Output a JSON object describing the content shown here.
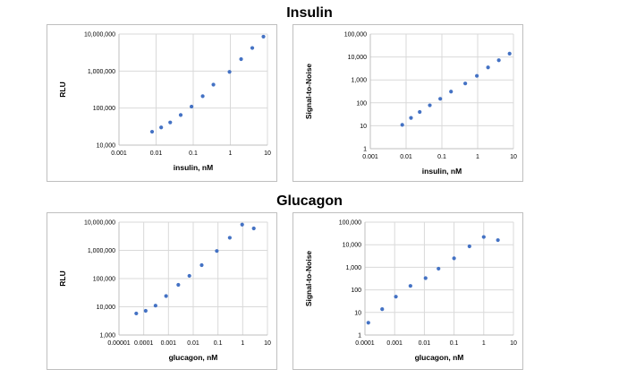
{
  "sections": [
    {
      "title": "Insulin"
    },
    {
      "title": "Glucagon"
    }
  ],
  "chart_data": [
    {
      "id": "insulin-rlu",
      "type": "scatter",
      "xlabel": "insulin, nM",
      "ylabel": "RLU",
      "xscale": "log",
      "yscale": "log",
      "xlim": [
        0.001,
        10
      ],
      "ylim": [
        10000,
        10000000
      ],
      "xticks": [
        "0.001",
        "0.01",
        "0.1",
        "1",
        "10"
      ],
      "yticks": [
        "10,000",
        "100,000",
        "1,000,000",
        "10,000,000"
      ],
      "grid": true,
      "color": "#4472c4",
      "points": [
        [
          0.0078,
          23000
        ],
        [
          0.0137,
          30000
        ],
        [
          0.024,
          41000
        ],
        [
          0.046,
          65000
        ],
        [
          0.09,
          110000
        ],
        [
          0.18,
          210000
        ],
        [
          0.35,
          430000
        ],
        [
          0.95,
          950000
        ],
        [
          1.95,
          2100000
        ],
        [
          3.9,
          4200000
        ],
        [
          7.8,
          8500000
        ]
      ]
    },
    {
      "id": "insulin-sn",
      "type": "scatter",
      "xlabel": "insulin, nM",
      "ylabel": "Signal-to-Noise",
      "xscale": "log",
      "yscale": "log",
      "xlim": [
        0.001,
        10
      ],
      "ylim": [
        1,
        100000
      ],
      "xticks": [
        "0.001",
        "0.01",
        "0.1",
        "1",
        "10"
      ],
      "yticks": [
        "1",
        "10",
        "100",
        "1,000",
        "10,000",
        "100,000"
      ],
      "grid": true,
      "color": "#4472c4",
      "points": [
        [
          0.0078,
          11
        ],
        [
          0.0137,
          22
        ],
        [
          0.024,
          40
        ],
        [
          0.046,
          78
        ],
        [
          0.09,
          150
        ],
        [
          0.18,
          310
        ],
        [
          0.45,
          700
        ],
        [
          0.95,
          1500
        ],
        [
          1.95,
          3500
        ],
        [
          3.9,
          7200
        ],
        [
          7.8,
          14000
        ]
      ]
    },
    {
      "id": "glucagon-rlu",
      "type": "scatter",
      "xlabel": "glucagon, nM",
      "ylabel": "RLU",
      "xscale": "log",
      "yscale": "log",
      "xlim": [
        1e-05,
        10
      ],
      "ylim": [
        1000,
        10000000
      ],
      "xticks": [
        "0.00001",
        "0.0001",
        "0.001",
        "0.01",
        "0.1",
        "1",
        "10"
      ],
      "yticks": [
        "1,000",
        "10,000",
        "100,000",
        "1,000,000",
        "10,000,000"
      ],
      "grid": true,
      "color": "#4472c4",
      "points": [
        [
          5e-05,
          5800
        ],
        [
          0.00012,
          7200
        ],
        [
          0.0003,
          11000
        ],
        [
          0.0008,
          24000
        ],
        [
          0.0025,
          60000
        ],
        [
          0.007,
          125000
        ],
        [
          0.022,
          300000
        ],
        [
          0.09,
          950000
        ],
        [
          0.3,
          2800000
        ],
        [
          0.95,
          8200000
        ],
        [
          2.8,
          6000000
        ]
      ]
    },
    {
      "id": "glucagon-sn",
      "type": "scatter",
      "xlabel": "glucagon, nM",
      "ylabel": "Signal-to-Noise",
      "xscale": "log",
      "yscale": "log",
      "xlim": [
        0.0001,
        10
      ],
      "ylim": [
        1,
        100000
      ],
      "xticks": [
        "0.0001",
        "0.001",
        "0.01",
        "0.1",
        "1",
        "10"
      ],
      "yticks": [
        "1",
        "10",
        "100",
        "1,000",
        "10,000",
        "100,000"
      ],
      "grid": true,
      "color": "#4472c4",
      "points": [
        [
          0.00013,
          3.5
        ],
        [
          0.00038,
          14
        ],
        [
          0.0011,
          50
        ],
        [
          0.0034,
          150
        ],
        [
          0.011,
          330
        ],
        [
          0.03,
          870
        ],
        [
          0.1,
          2500
        ],
        [
          0.33,
          8500
        ],
        [
          1.0,
          22000
        ],
        [
          3.0,
          16000
        ]
      ]
    }
  ]
}
